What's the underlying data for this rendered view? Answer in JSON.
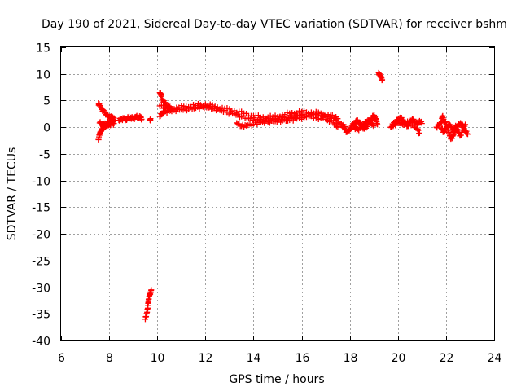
{
  "chart_data": {
    "type": "scatter",
    "title": "Day 190 of 2021, Sidereal Day-to-day VTEC variation (SDTVAR) for receiver bshm",
    "xlabel": "GPS time / hours",
    "ylabel": "SDTVAR / TECUs",
    "xlim": [
      6,
      24
    ],
    "ylim": [
      -40,
      15
    ],
    "xticks": [
      "6",
      "8",
      "10",
      "12",
      "14",
      "16",
      "18",
      "20",
      "22",
      "24"
    ],
    "yticks": [
      "15",
      "10",
      "5",
      "0",
      "-5",
      "-10",
      "-15",
      "-20",
      "-25",
      "-30",
      "-35",
      "-40"
    ],
    "grid": true,
    "marker": "plus",
    "color": "#ff0000",
    "series": [
      {
        "name": "SDTVAR",
        "segments": [
          [
            [
              7.55,
              -2.3
            ],
            [
              7.6,
              -1.5
            ],
            [
              7.65,
              -0.8
            ],
            [
              7.7,
              -0.3
            ],
            [
              7.75,
              0.0
            ],
            [
              7.8,
              0.2
            ],
            [
              7.9,
              0.3
            ],
            [
              8.0,
              0.5
            ],
            [
              8.1,
              0.6
            ],
            [
              8.2,
              0.7
            ]
          ],
          [
            [
              7.55,
              4.5
            ],
            [
              7.6,
              4.0
            ],
            [
              7.7,
              3.4
            ],
            [
              7.8,
              2.8
            ],
            [
              7.9,
              2.3
            ],
            [
              8.0,
              2.0
            ],
            [
              8.1,
              1.8
            ],
            [
              8.2,
              1.7
            ]
          ],
          [
            [
              7.6,
              0.8
            ],
            [
              7.7,
              0.6
            ],
            [
              7.8,
              0.5
            ],
            [
              7.9,
              0.7
            ],
            [
              8.0,
              0.9
            ],
            [
              8.1,
              1.1
            ],
            [
              8.2,
              1.3
            ]
          ],
          [
            [
              8.4,
              1.3
            ],
            [
              8.5,
              1.5
            ],
            [
              8.6,
              1.6
            ],
            [
              8.7,
              1.5
            ],
            [
              8.8,
              1.7
            ],
            [
              8.9,
              1.8
            ],
            [
              9.0,
              1.6
            ],
            [
              9.1,
              1.9
            ],
            [
              9.2,
              2.0
            ],
            [
              9.3,
              1.8
            ],
            [
              9.35,
              1.5
            ]
          ],
          [
            [
              9.7,
              1.3
            ],
            [
              9.72,
              1.6
            ]
          ],
          [
            [
              9.5,
              -36.0
            ],
            [
              9.55,
              -35.0
            ],
            [
              9.6,
              -34.0
            ],
            [
              9.62,
              -33.0
            ],
            [
              9.65,
              -32.2
            ],
            [
              9.68,
              -31.5
            ],
            [
              9.72,
              -30.9
            ],
            [
              9.75,
              -30.5
            ]
          ],
          [
            [
              10.1,
              6.5
            ],
            [
              10.15,
              6.0
            ],
            [
              10.2,
              5.3
            ],
            [
              10.3,
              4.6
            ],
            [
              10.4,
              4.1
            ],
            [
              10.5,
              3.7
            ],
            [
              10.6,
              3.4
            ]
          ],
          [
            [
              10.1,
              2.0
            ],
            [
              10.2,
              2.6
            ],
            [
              10.3,
              2.9
            ],
            [
              10.5,
              3.0
            ],
            [
              10.7,
              3.2
            ],
            [
              11.0,
              3.3
            ],
            [
              11.3,
              3.4
            ],
            [
              11.6,
              3.6
            ],
            [
              11.9,
              3.8
            ],
            [
              12.1,
              3.9
            ],
            [
              12.3,
              3.5
            ],
            [
              12.6,
              3.2
            ],
            [
              12.9,
              2.8
            ],
            [
              13.2,
              2.5
            ],
            [
              13.5,
              2.0
            ],
            [
              13.8,
              1.6
            ],
            [
              14.1,
              1.5
            ],
            [
              14.4,
              1.4
            ],
            [
              14.7,
              1.4
            ],
            [
              15.0,
              1.6
            ],
            [
              15.3,
              1.8
            ],
            [
              15.6,
              2.0
            ],
            [
              15.9,
              2.2
            ],
            [
              16.2,
              2.3
            ],
            [
              16.5,
              2.4
            ],
            [
              16.8,
              2.2
            ],
            [
              17.1,
              1.9
            ],
            [
              17.4,
              1.3
            ],
            [
              17.6,
              0.6
            ],
            [
              17.8,
              0.1
            ]
          ],
          [
            [
              10.1,
              4.0
            ],
            [
              10.4,
              3.5
            ],
            [
              10.8,
              3.7
            ],
            [
              11.2,
              3.9
            ],
            [
              11.6,
              4.1
            ],
            [
              12.0,
              4.3
            ],
            [
              12.4,
              3.9
            ],
            [
              12.8,
              3.5
            ],
            [
              13.2,
              3.1
            ],
            [
              13.6,
              2.6
            ],
            [
              14.0,
              2.1
            ],
            [
              14.4,
              1.9
            ],
            [
              14.8,
              1.9
            ],
            [
              15.2,
              2.3
            ],
            [
              15.6,
              2.7
            ],
            [
              16.0,
              2.9
            ],
            [
              16.4,
              2.8
            ],
            [
              16.8,
              2.6
            ],
            [
              17.2,
              2.2
            ],
            [
              17.5,
              1.6
            ]
          ],
          [
            [
              13.3,
              0.8
            ],
            [
              13.5,
              0.2
            ],
            [
              13.7,
              0.3
            ],
            [
              14.0,
              0.6
            ],
            [
              14.3,
              0.9
            ],
            [
              14.6,
              1.0
            ],
            [
              14.9,
              1.1
            ],
            [
              15.2,
              1.2
            ],
            [
              15.5,
              1.3
            ],
            [
              15.8,
              1.6
            ],
            [
              16.2,
              1.9
            ],
            [
              16.6,
              1.8
            ],
            [
              17.0,
              1.5
            ],
            [
              17.3,
              0.8
            ],
            [
              17.5,
              0.0
            ]
          ],
          [
            [
              17.7,
              0.4
            ],
            [
              17.8,
              -0.5
            ],
            [
              17.9,
              -0.9
            ],
            [
              18.0,
              -0.4
            ],
            [
              18.1,
              0.3
            ],
            [
              18.2,
              0.8
            ],
            [
              18.3,
              1.2
            ],
            [
              18.4,
              0.9
            ],
            [
              18.5,
              0.2
            ],
            [
              18.6,
              -0.3
            ],
            [
              18.7,
              0.2
            ],
            [
              18.8,
              0.9
            ],
            [
              18.9,
              1.6
            ],
            [
              19.0,
              2.2
            ],
            [
              19.05,
              1.9
            ],
            [
              19.1,
              1.2
            ],
            [
              19.15,
              0.5
            ]
          ],
          [
            [
              18.2,
              0.0
            ],
            [
              18.3,
              -0.5
            ],
            [
              18.45,
              -0.2
            ],
            [
              18.6,
              0.6
            ],
            [
              18.75,
              1.3
            ],
            [
              18.9,
              0.8
            ],
            [
              19.0,
              0.2
            ]
          ],
          [
            [
              19.2,
              10.2
            ],
            [
              19.25,
              9.8
            ],
            [
              19.3,
              9.3
            ],
            [
              19.35,
              8.9
            ]
          ],
          [
            [
              19.7,
              0.0
            ],
            [
              19.8,
              0.5
            ],
            [
              19.9,
              1.0
            ],
            [
              20.0,
              1.4
            ],
            [
              20.1,
              1.8
            ],
            [
              20.2,
              1.3
            ],
            [
              20.3,
              0.7
            ],
            [
              20.4,
              0.3
            ],
            [
              20.5,
              0.9
            ],
            [
              20.6,
              1.5
            ],
            [
              20.7,
              1.0
            ],
            [
              20.8,
              0.6
            ],
            [
              20.9,
              1.2
            ],
            [
              21.0,
              0.7
            ]
          ],
          [
            [
              19.8,
              0.2
            ],
            [
              20.0,
              0.9
            ],
            [
              20.2,
              0.5
            ],
            [
              20.4,
              1.1
            ],
            [
              20.6,
              0.4
            ],
            [
              20.8,
              -0.3
            ],
            [
              20.9,
              -1.1
            ]
          ],
          [
            [
              21.6,
              0.0
            ],
            [
              21.7,
              0.4
            ],
            [
              21.8,
              0.8
            ],
            [
              21.85,
              2.0
            ],
            [
              21.9,
              1.5
            ],
            [
              22.0,
              0.5
            ],
            [
              22.1,
              -0.5
            ],
            [
              22.15,
              -1.5
            ],
            [
              22.2,
              -2.2
            ],
            [
              22.3,
              -1.5
            ],
            [
              22.4,
              -0.6
            ],
            [
              22.5,
              0.2
            ],
            [
              22.6,
              0.8
            ],
            [
              22.7,
              0.2
            ],
            [
              22.8,
              -0.7
            ],
            [
              22.9,
              -1.3
            ]
          ],
          [
            [
              21.8,
              -0.2
            ],
            [
              21.9,
              -0.9
            ],
            [
              22.0,
              -0.3
            ],
            [
              22.1,
              0.6
            ],
            [
              22.2,
              0.1
            ],
            [
              22.3,
              -0.8
            ],
            [
              22.4,
              0.3
            ],
            [
              22.5,
              -1.0
            ],
            [
              22.6,
              -1.5
            ],
            [
              22.7,
              -0.5
            ],
            [
              22.8,
              0.5
            ]
          ]
        ]
      }
    ]
  }
}
